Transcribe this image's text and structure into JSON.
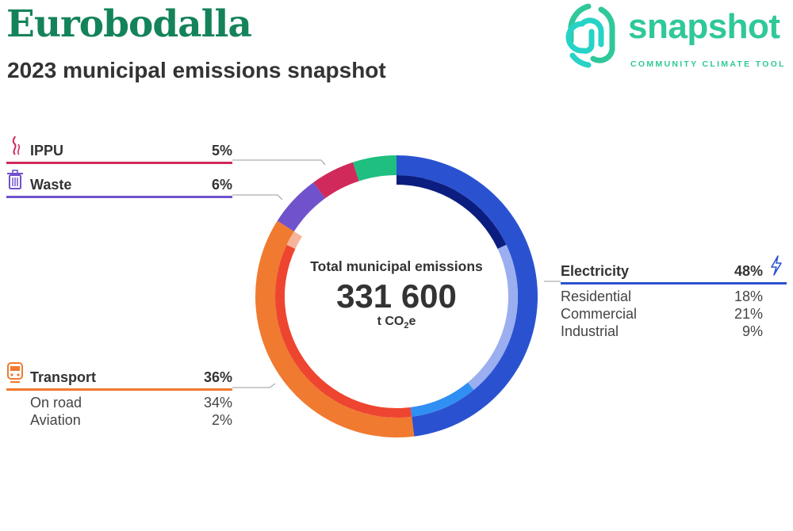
{
  "header": {
    "title": "Eurobodalla",
    "subtitle": "2023 municipal emissions snapshot"
  },
  "logo": {
    "word": "snapshot",
    "tagline": "COMMUNITY CLIMATE TOOL"
  },
  "chart_data": {
    "type": "pie",
    "variant": "donut",
    "center": {
      "label": "Total municipal emissions",
      "value": "331 600",
      "unit_prefix": "t CO",
      "unit_sub": "2",
      "unit_suffix": "e"
    },
    "series": [
      {
        "name": "Electricity",
        "value": 48,
        "label": "48%",
        "color": "#2a52d0",
        "icon": "lightning-icon",
        "subcategories": [
          {
            "name": "Residential",
            "value": 18,
            "label": "18%",
            "color": "#0b1e80"
          },
          {
            "name": "Commercial",
            "value": 21,
            "label": "21%",
            "color": "#9aaef0"
          },
          {
            "name": "Industrial",
            "value": 9,
            "label": "9%",
            "color": "#2f8ff2"
          }
        ]
      },
      {
        "name": "Transport",
        "value": 36,
        "label": "36%",
        "color": "#f07a30",
        "icon": "train-icon",
        "subcategories": [
          {
            "name": "On road",
            "value": 34,
            "label": "34%",
            "color": "#ee4530"
          },
          {
            "name": "Aviation",
            "value": 2,
            "label": "2%",
            "color": "#f7b49a"
          }
        ]
      },
      {
        "name": "Waste",
        "value": 6,
        "label": "6%",
        "color": "#7052cc",
        "icon": "trash-bin-icon",
        "subcategories": []
      },
      {
        "name": "IPPU",
        "value": 5,
        "label": "5%",
        "color": "#d02a5a",
        "icon": "smoke-icon",
        "subcategories": []
      },
      {
        "name": "",
        "value": 5,
        "color": "#1fbf80",
        "icon": "",
        "subcategories": []
      }
    ]
  }
}
